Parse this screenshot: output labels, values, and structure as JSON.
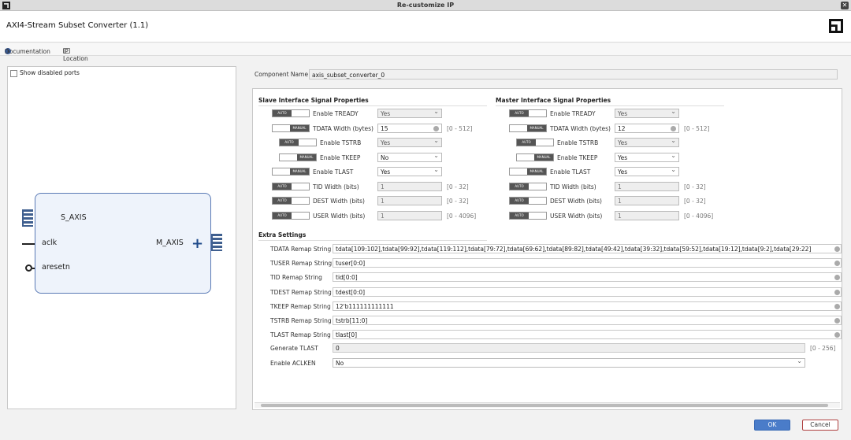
{
  "window": {
    "title": "Re-customize IP"
  },
  "header": {
    "title": "AXI4-Stream Subset Converter (1.1)"
  },
  "links": {
    "documentation": "Documentation",
    "ip_location": "IP Location"
  },
  "left": {
    "show_disabled": "Show disabled ports",
    "ports": {
      "s_axis": "S_AXIS",
      "aclk": "aclk",
      "aresetn": "aresetn",
      "m_axis": "M_AXIS"
    }
  },
  "component": {
    "label": "Component Name",
    "value": "axis_subset_converter_0"
  },
  "slave": {
    "title": "Slave Interface Signal Properties",
    "rows": [
      {
        "toggle": "AUTO",
        "label": "Enable TREADY",
        "value": "Yes",
        "kind": "select",
        "disabled": true
      },
      {
        "toggle": "MANUAL",
        "label": "TDATA Width (bytes)",
        "value": "15",
        "kind": "input",
        "disabled": false,
        "range": "[0 - 512]"
      },
      {
        "toggle": "AUTO",
        "label": "Enable TSTRB",
        "value": "Yes",
        "kind": "select",
        "disabled": true,
        "indent": true
      },
      {
        "toggle": "MANUAL",
        "label": "Enable TKEEP",
        "value": "No",
        "kind": "select",
        "disabled": false,
        "indent": true
      },
      {
        "toggle": "MANUAL",
        "label": "Enable TLAST",
        "value": "Yes",
        "kind": "select",
        "disabled": false
      },
      {
        "toggle": "AUTO",
        "label": "TID Width (bits)",
        "value": "1",
        "kind": "input",
        "disabled": true,
        "range": "[0 - 32]"
      },
      {
        "toggle": "AUTO",
        "label": "DEST Width (bits)",
        "value": "1",
        "kind": "input",
        "disabled": true,
        "range": "[0 - 32]"
      },
      {
        "toggle": "AUTO",
        "label": "USER Width (bits)",
        "value": "1",
        "kind": "input",
        "disabled": true,
        "range": "[0 - 4096]"
      }
    ]
  },
  "master": {
    "title": "Master Interface Signal Properties",
    "rows": [
      {
        "toggle": "AUTO",
        "label": "Enable TREADY",
        "value": "Yes",
        "kind": "select",
        "disabled": true
      },
      {
        "toggle": "MANUAL",
        "label": "TDATA Width (bytes)",
        "value": "12",
        "kind": "input",
        "disabled": false,
        "range": "[0 - 512]"
      },
      {
        "toggle": "AUTO",
        "label": "Enable TSTRB",
        "value": "Yes",
        "kind": "select",
        "disabled": true,
        "indent": true
      },
      {
        "toggle": "MANUAL",
        "label": "Enable TKEEP",
        "value": "Yes",
        "kind": "select",
        "disabled": false,
        "indent": true
      },
      {
        "toggle": "MANUAL",
        "label": "Enable TLAST",
        "value": "Yes",
        "kind": "select",
        "disabled": false
      },
      {
        "toggle": "AUTO",
        "label": "TID Width (bits)",
        "value": "1",
        "kind": "input",
        "disabled": true,
        "range": "[0 - 32]"
      },
      {
        "toggle": "AUTO",
        "label": "DEST Width (bits)",
        "value": "1",
        "kind": "input",
        "disabled": true,
        "range": "[0 - 32]"
      },
      {
        "toggle": "AUTO",
        "label": "USER Width (bits)",
        "value": "1",
        "kind": "input",
        "disabled": true,
        "range": "[0 - 4096]"
      }
    ]
  },
  "extra": {
    "title": "Extra Settings",
    "rows": [
      {
        "label": "TDATA Remap String",
        "value": "tdata[109:102],tdata[99:92],tdata[119:112],tdata[79:72],tdata[69:62],tdata[89:82],tdata[49:42],tdata[39:32],tdata[59:52],tdata[19:12],tdata[9:2],tdata[29:22]"
      },
      {
        "label": "TUSER Remap String",
        "value": "tuser[0:0]"
      },
      {
        "label": "TID Remap String",
        "value": "tid[0:0]"
      },
      {
        "label": "TDEST Remap String",
        "value": "tdest[0:0]"
      },
      {
        "label": "TKEEP Remap String",
        "value": "12'b111111111111"
      },
      {
        "label": "TSTRB Remap String",
        "value": "tstrb[11:0]"
      },
      {
        "label": "TLAST Remap String",
        "value": "tlast[0]"
      }
    ],
    "generate_tlast": {
      "label": "Generate TLAST",
      "value": "0",
      "range": "[0 - 256]"
    },
    "enable_aclken": {
      "label": "Enable ACLKEN",
      "value": "No"
    }
  },
  "buttons": {
    "ok": "OK",
    "cancel": "Cancel"
  }
}
